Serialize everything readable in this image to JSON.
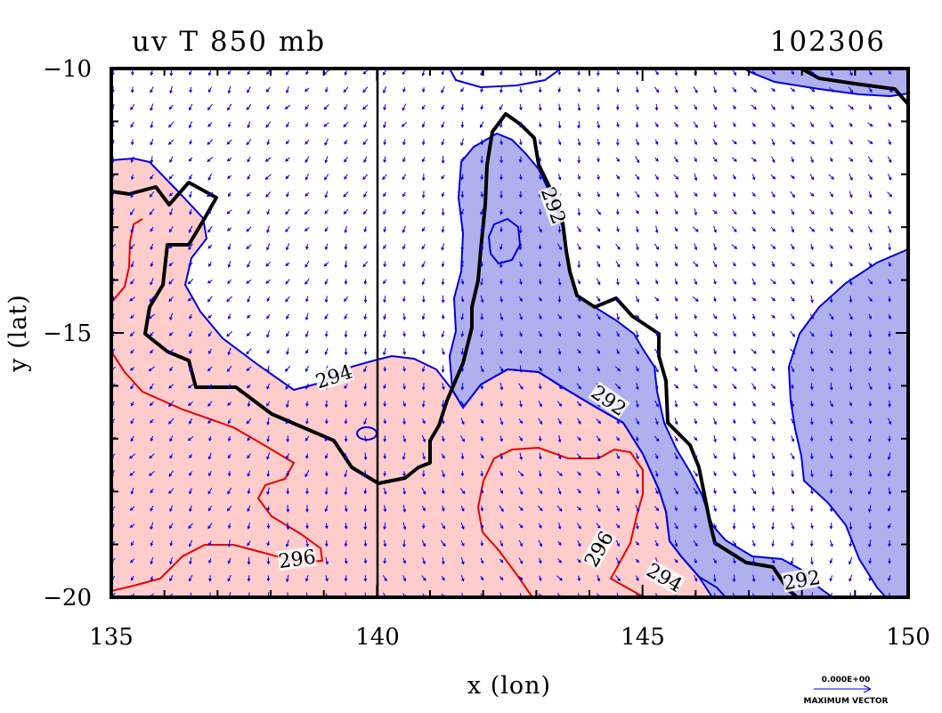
{
  "chart_data": {
    "type": "contour",
    "title_left": "uv T 850 mb",
    "title_right": "102306",
    "xlabel": "x (lon)",
    "ylabel": "y (lat)",
    "xlim": [
      135,
      150
    ],
    "ylim": [
      -20,
      -10
    ],
    "x_ticks": [
      135,
      140,
      145,
      150
    ],
    "y_ticks": [
      -10,
      -15,
      -20
    ],
    "x_tick_labels": [
      "135",
      "140",
      "145",
      "150"
    ],
    "y_tick_labels": [
      "−10",
      "−15",
      "−20"
    ],
    "contour_labels": [
      {
        "text": "294",
        "lon": 139.2,
        "lat": -15.85,
        "angle": -18
      },
      {
        "text": "292",
        "lon": 143.3,
        "lat": -12.6,
        "angle": 70
      },
      {
        "text": "292",
        "lon": 144.35,
        "lat": -16.3,
        "angle": 35
      },
      {
        "text": "296",
        "lon": 138.5,
        "lat": -19.3,
        "angle": -8
      },
      {
        "text": "296",
        "lon": 144.2,
        "lat": -19.1,
        "angle": -60
      },
      {
        "text": "294",
        "lon": 145.4,
        "lat": -19.65,
        "angle": 30
      },
      {
        "text": "292",
        "lon": 148.0,
        "lat": -19.7,
        "angle": -10
      }
    ],
    "fills": {
      "warm": "#ffcccc",
      "cool": "#b0b0ee"
    },
    "line_colors": {
      "warm": "#e60000",
      "cool": "#0000dd",
      "black": "#000000",
      "vector": "#0000ee"
    },
    "vertical_line_lon": 140,
    "vector_legend": {
      "value_text": "0.000E+00",
      "label_text": "MAXIMUM VECTOR"
    }
  }
}
